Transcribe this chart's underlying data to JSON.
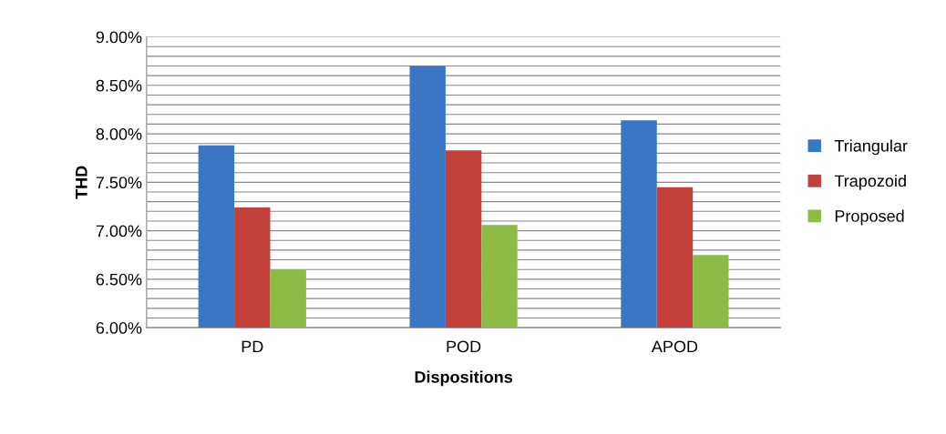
{
  "chart_data": {
    "type": "bar",
    "xlabel": "Dispositions",
    "ylabel": "THD",
    "categories": [
      "PD",
      "POD",
      "APOD"
    ],
    "series": [
      {
        "name": "Triangular",
        "color": "#3a76c4",
        "values": [
          7.88,
          8.7,
          8.14
        ]
      },
      {
        "name": "Trapozoid",
        "color": "#c23f3a",
        "values": [
          7.24,
          7.83,
          7.45
        ]
      },
      {
        "name": "Proposed",
        "color": "#8dbb45",
        "values": [
          6.6,
          7.06,
          6.75
        ]
      }
    ],
    "ylim": [
      6.0,
      9.0
    ],
    "yticks": [
      {
        "value": 6.0,
        "label": "6.00%"
      },
      {
        "value": 6.1,
        "label": null
      },
      {
        "value": 6.2,
        "label": null
      },
      {
        "value": 6.3,
        "label": null
      },
      {
        "value": 6.4,
        "label": null
      },
      {
        "value": 6.5,
        "label": "6.50%"
      },
      {
        "value": 6.6,
        "label": null
      },
      {
        "value": 6.7,
        "label": null
      },
      {
        "value": 6.8,
        "label": null
      },
      {
        "value": 6.9,
        "label": null
      },
      {
        "value": 7.0,
        "label": "7.00%"
      },
      {
        "value": 7.1,
        "label": null
      },
      {
        "value": 7.2,
        "label": null
      },
      {
        "value": 7.3,
        "label": null
      },
      {
        "value": 7.4,
        "label": null
      },
      {
        "value": 7.5,
        "label": "7.50%"
      },
      {
        "value": 7.6,
        "label": null
      },
      {
        "value": 7.7,
        "label": null
      },
      {
        "value": 7.8,
        "label": null
      },
      {
        "value": 7.9,
        "label": null
      },
      {
        "value": 8.0,
        "label": "8.00%"
      },
      {
        "value": 8.1,
        "label": null
      },
      {
        "value": 8.2,
        "label": null
      },
      {
        "value": 8.3,
        "label": null
      },
      {
        "value": 8.4,
        "label": null
      },
      {
        "value": 8.5,
        "label": "8.50%"
      },
      {
        "value": 8.6,
        "label": null
      },
      {
        "value": 8.7,
        "label": null
      },
      {
        "value": 8.8,
        "label": null
      },
      {
        "value": 8.9,
        "label": null
      },
      {
        "value": 9.0,
        "label": "9.00%"
      }
    ],
    "grid": "y",
    "legend": "right"
  }
}
